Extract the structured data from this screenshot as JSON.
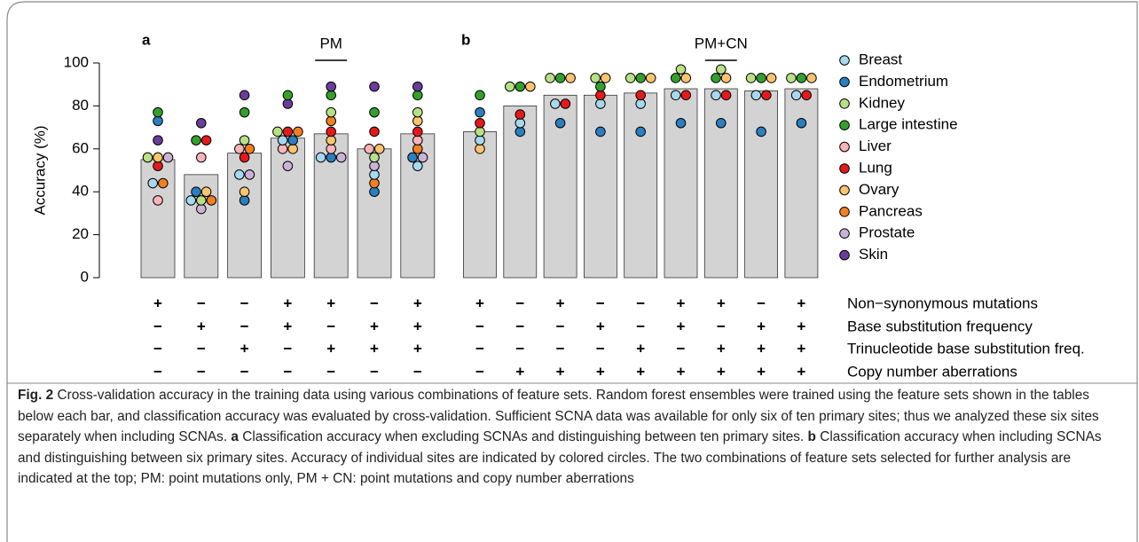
{
  "chart_data": [
    {
      "type": "bar",
      "panel": "a",
      "annotation": "PM",
      "annotation_bar": 4,
      "bar_color": "#d3d3d3",
      "ylabel": "Accuracy (%)",
      "ylim": [
        0,
        100
      ],
      "yticks": [
        0,
        20,
        40,
        60,
        80,
        100
      ],
      "values": [
        55,
        48,
        58,
        65,
        67,
        60,
        67
      ],
      "series": [
        {
          "name": "Breast",
          "color": "#a6d9ee",
          "values": [
            44,
            36,
            48,
            64,
            56,
            48,
            52
          ]
        },
        {
          "name": "Endometrium",
          "color": "#2a7fbf",
          "values": [
            73,
            40,
            36,
            64,
            56,
            40,
            56
          ]
        },
        {
          "name": "Kidney",
          "color": "#b8e186",
          "values": [
            56,
            36,
            64,
            68,
            77,
            56,
            77
          ]
        },
        {
          "name": "Large intestine",
          "color": "#33a02c",
          "values": [
            77,
            64,
            77,
            85,
            85,
            77,
            85
          ]
        },
        {
          "name": "Liver",
          "color": "#fbb4b9",
          "values": [
            36,
            56,
            60,
            60,
            60,
            60,
            64
          ]
        },
        {
          "name": "Lung",
          "color": "#e31a1c",
          "values": [
            52,
            64,
            56,
            68,
            68,
            68,
            68
          ]
        },
        {
          "name": "Ovary",
          "color": "#fdc46e",
          "values": [
            56,
            40,
            40,
            60,
            64,
            60,
            73
          ]
        },
        {
          "name": "Pancreas",
          "color": "#f47f20",
          "values": [
            44,
            36,
            60,
            68,
            73,
            44,
            60
          ]
        },
        {
          "name": "Prostate",
          "color": "#c9b3d6",
          "values": [
            56,
            32,
            48,
            52,
            56,
            52,
            56
          ]
        },
        {
          "name": "Skin",
          "color": "#6a3d9a",
          "values": [
            64,
            72,
            85,
            81,
            89,
            89,
            89
          ]
        }
      ],
      "signs": [
        [
          "+",
          "−",
          "−",
          "+",
          "+",
          "−",
          "+"
        ],
        [
          "−",
          "+",
          "−",
          "+",
          "−",
          "+",
          "+"
        ],
        [
          "−",
          "−",
          "+",
          "−",
          "+",
          "+",
          "+"
        ],
        [
          "−",
          "−",
          "−",
          "−",
          "−",
          "−",
          "−"
        ]
      ]
    },
    {
      "type": "bar",
      "panel": "b",
      "annotation": "PM+CN",
      "annotation_bar": 6,
      "bar_color": "#d3d3d3",
      "ylim": [
        0,
        100
      ],
      "values": [
        68,
        80,
        85,
        85,
        86,
        88,
        88,
        87,
        88
      ],
      "series": [
        {
          "name": "Breast",
          "color": "#a6d9ee",
          "values": [
            64,
            72,
            81,
            81,
            81,
            85,
            85,
            85,
            85
          ]
        },
        {
          "name": "Endometrium",
          "color": "#2a7fbf",
          "values": [
            77,
            68,
            72,
            68,
            68,
            72,
            72,
            68,
            72
          ]
        },
        {
          "name": "Kidney",
          "color": "#b8e186",
          "values": [
            68,
            89,
            93,
            93,
            93,
            97,
            97,
            93,
            93
          ]
        },
        {
          "name": "Large intestine",
          "color": "#33a02c",
          "values": [
            85,
            89,
            93,
            89,
            93,
            93,
            93,
            93,
            93
          ]
        },
        {
          "name": "Lung",
          "color": "#e31a1c",
          "values": [
            72,
            76,
            81,
            85,
            85,
            85,
            85,
            85,
            85
          ]
        },
        {
          "name": "Ovary",
          "color": "#fdc46e",
          "values": [
            60,
            89,
            93,
            93,
            93,
            93,
            93,
            93,
            93
          ]
        }
      ],
      "signs": [
        [
          "+",
          "−",
          "+",
          "−",
          "−",
          "+",
          "+",
          "−",
          "+"
        ],
        [
          "−",
          "−",
          "−",
          "+",
          "−",
          "+",
          "−",
          "+",
          "+"
        ],
        [
          "−",
          "−",
          "−",
          "−",
          "+",
          "−",
          "+",
          "+",
          "+"
        ],
        [
          "−",
          "+",
          "+",
          "+",
          "+",
          "+",
          "+",
          "+",
          "+"
        ]
      ]
    }
  ],
  "feature_rows": [
    "Non−synonymous mutations",
    "Base substitution frequency",
    "Trinucleotide base substitution freq.",
    "Copy number aberrations"
  ],
  "caption": [
    {
      "text": "Fig. 2",
      "bold": true
    },
    {
      "text": " Cross-validation accuracy in the training data using various combinations of feature sets. Random forest ensembles were trained using the feature sets shown in the tables below each bar, and classification accuracy was evaluated by cross-validation. Sufficient SCNA data was available for only six of ten primary sites; thus we analyzed these six sites separately when including SCNAs. ",
      "bold": false
    },
    {
      "text": "a",
      "bold": true
    },
    {
      "text": " Classification accuracy when excluding SCNAs and distinguishing between ten primary sites. ",
      "bold": false
    },
    {
      "text": "b",
      "bold": true
    },
    {
      "text": " Classification accuracy when including SCNAs and distinguishing between six primary sites. Accuracy of individual sites are indicated by colored circles. The two combinations of feature sets selected for further analysis are indicated at the top; PM: point mutations only, PM + CN: point mutations and copy number aberrations",
      "bold": false
    }
  ]
}
